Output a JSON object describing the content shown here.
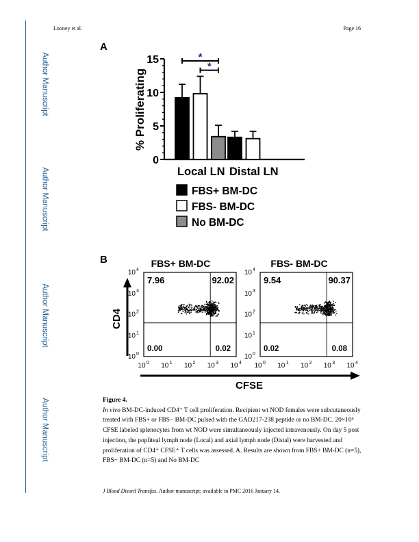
{
  "sidebar": {
    "label": "Author Manuscript"
  },
  "header": {
    "authors": "Looney et al.",
    "page": "Page 16"
  },
  "panel_a": {
    "letter": "A",
    "ylabel": "% Proliferating",
    "significance": "*",
    "legend": [
      "FBS+ BM-DC",
      "FBS- BM-DC",
      "No BM-DC"
    ]
  },
  "panel_b": {
    "letter": "B",
    "titles": [
      "FBS+ BM-DC",
      "FBS- BM-DC"
    ],
    "ylabel": "CD4",
    "xlabel": "CFSE",
    "quadrants": [
      {
        "ul": "7.96",
        "ur": "92.02",
        "ll": "0.00",
        "lr": "0.02"
      },
      {
        "ul": "9.54",
        "ur": "90.37",
        "ll": "0.02",
        "lr": "0.08"
      }
    ],
    "tick_exponents": [
      "0",
      "1",
      "2",
      "3",
      "4"
    ]
  },
  "chart_data": {
    "type": "bar",
    "categories": [
      "Local LN",
      "Distal LN"
    ],
    "ylabel": "% Proliferating",
    "ylim": [
      0,
      15
    ],
    "yticks": [
      0,
      5,
      10,
      15
    ],
    "legend_position": "bottom",
    "series": [
      {
        "name": "FBS+ BM-DC",
        "color": "#000000",
        "values": [
          9.2,
          3.3
        ],
        "errors": [
          2.0,
          0.9
        ]
      },
      {
        "name": "FBS- BM-DC",
        "color": "#ffffff",
        "values": [
          9.8,
          3.1
        ],
        "errors": [
          2.6,
          1.1
        ]
      },
      {
        "name": "No BM-DC",
        "color": "#8c8c8c",
        "values": [
          3.4,
          null
        ],
        "errors": [
          1.7,
          null
        ]
      }
    ]
  },
  "caption": {
    "title": "Figure 4.",
    "intro_italic": "In vivo",
    "text": "BM-DC-induced CD4⁺ T cell proliferation. Recipient wt NOD females were subcutaneously treated with FBS+ or FBS− BM-DC pulsed with the GAD217-238 peptide or no BM-DC. 20×10⁶ CFSE labeled splenocytes from wt NOD were simultaneously injected intravenously. On day 5 post injection, the popliteal lymph node (Local) and axial lymph node (Distal) were harvested and proliferation of CD4⁺ CFSE⁺ T cells was assessed. A. Results are shown from FBS+ BM-DC (n=5), FBS− BM-DC (n=5) and No BM-DC"
  },
  "footer": {
    "journal": "J Blood Disord Transfus",
    "text": ". Author manuscript; available in PMC 2016 January 14."
  }
}
